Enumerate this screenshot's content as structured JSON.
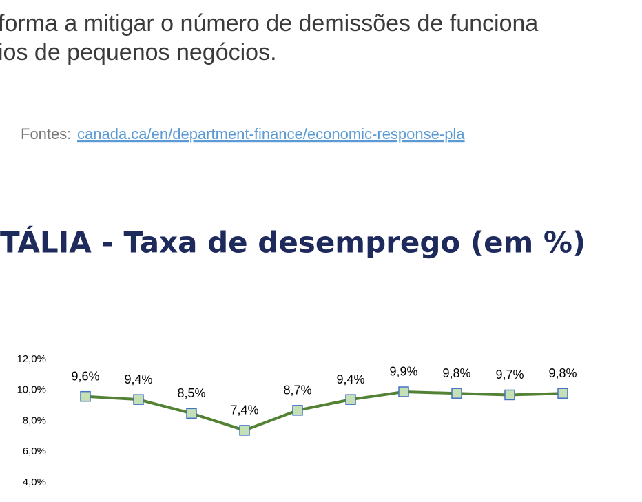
{
  "text": {
    "line1": "forma a mitigar o número de demissões de funciona",
    "line2": "ios de pequenos negócios.",
    "sources_label": "Fontes:",
    "sources_link": "canada.ca/en/department-finance/economic-response-pla"
  },
  "chart_data": {
    "type": "line",
    "title": "TÁLIA - Taxa de desemprego (em %)",
    "categories": [
      null,
      null,
      null,
      null,
      null,
      null,
      null,
      null,
      null,
      null
    ],
    "series": [
      {
        "color": "#548235",
        "marker_fill": "#c5e0b4",
        "marker_stroke": "#4472c4",
        "values": [
          9.6,
          9.4,
          8.5,
          7.4,
          8.7,
          9.4,
          9.9,
          9.8,
          9.7,
          9.8
        ],
        "value_labels": [
          "9,6%",
          "9,4%",
          "8,5%",
          "7,4%",
          "8,7%",
          "9,4%",
          "9,9%",
          "9,8%",
          "9,7%",
          "9,8%"
        ]
      }
    ],
    "ylim": [
      4,
      12
    ],
    "yticks": [
      {
        "value": 4,
        "label": "4,0%"
      },
      {
        "value": 6,
        "label": "6,0%"
      },
      {
        "value": 8,
        "label": "8,0%"
      },
      {
        "value": 10,
        "label": "10,0%"
      },
      {
        "value": 12,
        "label": "12,0%"
      }
    ]
  }
}
